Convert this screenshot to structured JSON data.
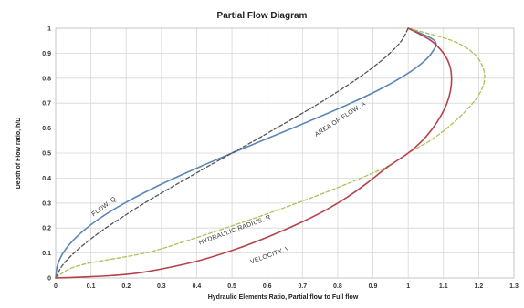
{
  "chart_data": {
    "type": "line",
    "title": "Partial Flow Diagram",
    "xlabel": "Hydraulic Elements Ratio, Partial flow to Full flow",
    "ylabel": "Depth of Flow ratio, h/D",
    "xlim": [
      0,
      1.3
    ],
    "ylim": [
      0,
      1
    ],
    "x_ticks": [
      "0",
      "0.1",
      "0.2",
      "0.3",
      "0.4",
      "0.5",
      "0.6",
      "0.7",
      "0.8",
      "0.9",
      "1",
      "1.1",
      "1.2",
      "1.3"
    ],
    "y_ticks": [
      "0",
      "0.1",
      "0.2",
      "0.3",
      "0.4",
      "0.5",
      "0.6",
      "0.7",
      "0.8",
      "0.9",
      "1"
    ],
    "grid": true,
    "legend": "none",
    "series": [
      {
        "name": "FLOW, Q",
        "color": "#5b86b5",
        "dash": "solid",
        "points": [
          [
            0,
            0
          ],
          [
            0.005,
            0.05
          ],
          [
            0.021,
            0.1
          ],
          [
            0.049,
            0.15
          ],
          [
            0.088,
            0.2
          ],
          [
            0.137,
            0.25
          ],
          [
            0.196,
            0.3
          ],
          [
            0.263,
            0.35
          ],
          [
            0.337,
            0.4
          ],
          [
            0.417,
            0.45
          ],
          [
            0.5,
            0.5
          ],
          [
            0.586,
            0.55
          ],
          [
            0.672,
            0.6
          ],
          [
            0.756,
            0.65
          ],
          [
            0.837,
            0.7
          ],
          [
            0.912,
            0.75
          ],
          [
            0.977,
            0.8
          ],
          [
            1.03,
            0.85
          ],
          [
            1.066,
            0.9
          ],
          [
            1.075,
            0.95
          ],
          [
            1.0,
            1.0
          ]
        ]
      },
      {
        "name": "AREA OF FLOW, A",
        "color": "#555555",
        "dash": "dashed",
        "points": [
          [
            0,
            0
          ],
          [
            0.019,
            0.05
          ],
          [
            0.052,
            0.1
          ],
          [
            0.094,
            0.15
          ],
          [
            0.142,
            0.2
          ],
          [
            0.196,
            0.25
          ],
          [
            0.252,
            0.3
          ],
          [
            0.312,
            0.35
          ],
          [
            0.374,
            0.4
          ],
          [
            0.436,
            0.45
          ],
          [
            0.5,
            0.5
          ],
          [
            0.564,
            0.55
          ],
          [
            0.626,
            0.6
          ],
          [
            0.688,
            0.65
          ],
          [
            0.748,
            0.7
          ],
          [
            0.804,
            0.75
          ],
          [
            0.858,
            0.8
          ],
          [
            0.906,
            0.85
          ],
          [
            0.948,
            0.9
          ],
          [
            0.981,
            0.95
          ],
          [
            1.0,
            1.0
          ]
        ]
      },
      {
        "name": "HYDRAULIC RADIUS, R",
        "color": "#a8c35a",
        "dash": "dashed",
        "points": [
          [
            0,
            0
          ],
          [
            0.066,
            0.05
          ],
          [
            0.254,
            0.1
          ],
          [
            0.374,
            0.15
          ],
          [
            0.482,
            0.2
          ],
          [
            0.586,
            0.25
          ],
          [
            0.685,
            0.3
          ],
          [
            0.779,
            0.35
          ],
          [
            0.866,
            0.4
          ],
          [
            0.946,
            0.45
          ],
          [
            1.0,
            0.5
          ],
          [
            1.062,
            0.55
          ],
          [
            1.11,
            0.6
          ],
          [
            1.15,
            0.65
          ],
          [
            1.183,
            0.7
          ],
          [
            1.207,
            0.75
          ],
          [
            1.217,
            0.8
          ],
          [
            1.21,
            0.85
          ],
          [
            1.185,
            0.9
          ],
          [
            1.125,
            0.95
          ],
          [
            1.0,
            1.0
          ]
        ]
      },
      {
        "name": "VELOCITY, V",
        "color": "#b5434a",
        "dash": "solid",
        "points": [
          [
            0,
            0
          ],
          [
            0.06,
            0.003
          ],
          [
            0.16,
            0.01
          ],
          [
            0.257,
            0.025
          ],
          [
            0.4,
            0.067
          ],
          [
            0.52,
            0.12
          ],
          [
            0.62,
            0.175
          ],
          [
            0.7,
            0.225
          ],
          [
            0.77,
            0.275
          ],
          [
            0.834,
            0.33
          ],
          [
            0.888,
            0.385
          ],
          [
            0.942,
            0.445
          ],
          [
            1.0,
            0.5
          ],
          [
            1.04,
            0.55
          ],
          [
            1.07,
            0.6
          ],
          [
            1.093,
            0.65
          ],
          [
            1.11,
            0.7
          ],
          [
            1.12,
            0.75
          ],
          [
            1.123,
            0.8
          ],
          [
            1.118,
            0.85
          ],
          [
            1.1,
            0.9
          ],
          [
            1.065,
            0.95
          ],
          [
            1.0,
            1.0
          ]
        ]
      }
    ],
    "annotations": [
      {
        "text": "FLOW, Q",
        "series": "FLOW, Q",
        "x": 0.14,
        "y": 0.28,
        "angle": -36
      },
      {
        "text": "AREA OF FLOW, A",
        "series": "AREA OF FLOW, A",
        "x": 0.81,
        "y": 0.63,
        "angle": -33
      },
      {
        "text": "HYDRAULIC RADIUS, R",
        "series": "HYDRAULIC RADIUS, R",
        "x": 0.51,
        "y": 0.185,
        "angle": -20
      },
      {
        "text": "VELOCITY, V",
        "series": "VELOCITY, V",
        "x": 0.61,
        "y": 0.085,
        "angle": -20
      }
    ]
  }
}
